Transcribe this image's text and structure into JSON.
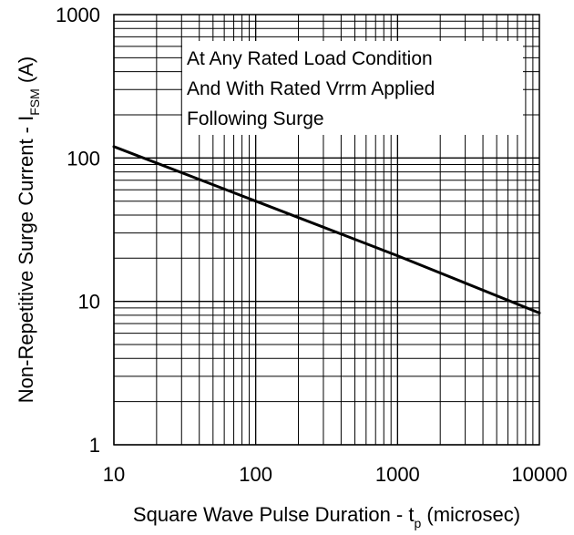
{
  "chart_data": {
    "type": "line",
    "x_scale": "log",
    "y_scale": "log",
    "xlim": [
      10,
      10000
    ],
    "ylim": [
      1,
      1000
    ],
    "x_ticks": [
      "10",
      "100",
      "1000",
      "10000"
    ],
    "y_ticks": [
      "1",
      "10",
      "100",
      "1000"
    ],
    "xlabel": {
      "main": "Square Wave Pulse Duration - t",
      "subscript": "p",
      "suffix": " (microsec)"
    },
    "ylabel": {
      "main": "Non-Repetitive Surge Current - I",
      "subscript": "FSM",
      "suffix": " (A)"
    },
    "annotation": [
      "At Any Rated Load Condition",
      "And With Rated Vrrm Applied",
      "Following Surge"
    ],
    "grid": true,
    "series": [
      {
        "x": [
          10,
          100,
          1000,
          10000
        ],
        "y": [
          120,
          50,
          20.8,
          8.3
        ]
      }
    ],
    "colors": {
      "line": "#000000",
      "grid": "#000000",
      "background": "#ffffff"
    }
  }
}
